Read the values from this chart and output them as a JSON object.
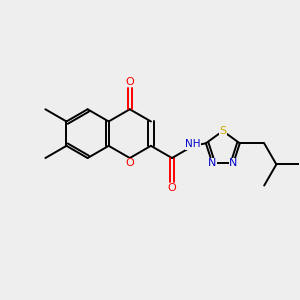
{
  "bg_color": "#eeeeee",
  "colors": {
    "C": "#000000",
    "O": "#ff0000",
    "N": "#0000cc",
    "S": "#ccaa00",
    "H": "#008080"
  },
  "bond_color": "#000000",
  "figsize": [
    3.0,
    3.0
  ],
  "dpi": 100
}
